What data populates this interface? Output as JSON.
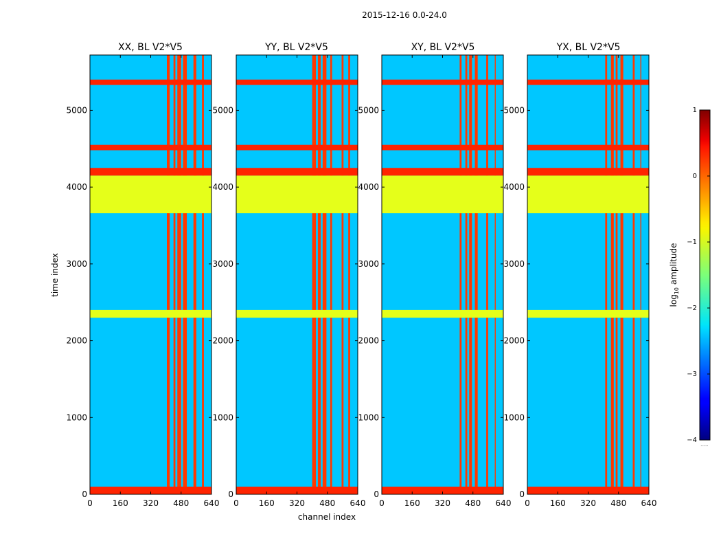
{
  "chart_data": {
    "type": "heatmap",
    "suptitle": "2015-12-16 0.0-24.0",
    "xlabel": "channel index",
    "ylabel": "time index",
    "xlim": [
      0,
      640
    ],
    "ylim": [
      0,
      5720
    ],
    "xticks": [
      "0",
      "160",
      "320",
      "480",
      "640"
    ],
    "xtick_values": [
      0,
      160,
      320,
      480,
      640
    ],
    "yticks": [
      "0",
      "1000",
      "2000",
      "3000",
      "4000",
      "5000"
    ],
    "ytick_values": [
      0,
      1000,
      2000,
      3000,
      4000,
      5000
    ],
    "colormap": "jet",
    "colorbar": {
      "label_prefix": "log",
      "label_sub": "10",
      "label_suffix": " amplitude",
      "range": [
        -4,
        1
      ],
      "ticks": [
        "−4",
        "−3",
        "−2",
        "−1",
        "0",
        "1"
      ],
      "tick_values": [
        -4,
        -3,
        -2,
        -1,
        0,
        1
      ],
      "footnote": "......"
    },
    "panels": [
      {
        "title": "XX, BL V2*V5",
        "rfi_channels": [
          [
            405,
            420
          ],
          [
            440,
            450
          ],
          [
            460,
            480
          ],
          [
            490,
            510
          ],
          [
            545,
            560
          ],
          [
            590,
            600
          ]
        ]
      },
      {
        "title": "YY, BL V2*V5",
        "rfi_channels": [
          [
            400,
            420
          ],
          [
            430,
            445
          ],
          [
            455,
            475
          ],
          [
            495,
            505
          ],
          [
            555,
            565
          ],
          [
            590,
            600
          ]
        ]
      },
      {
        "title": "XY, BL V2*V5",
        "rfi_channels": [
          [
            410,
            420
          ],
          [
            440,
            450
          ],
          [
            460,
            475
          ],
          [
            490,
            505
          ],
          [
            550,
            560
          ],
          [
            595,
            600
          ]
        ]
      },
      {
        "title": "YX, BL V2*V5",
        "rfi_channels": [
          [
            410,
            420
          ],
          [
            440,
            455
          ],
          [
            465,
            475
          ],
          [
            490,
            505
          ],
          [
            555,
            565
          ],
          [
            595,
            600
          ]
        ]
      }
    ],
    "flagged_time_ranges": [
      {
        "range": [
          0,
          100
        ],
        "value": 0.2
      },
      {
        "range": [
          2300,
          2400
        ],
        "value": -1.0
      },
      {
        "range": [
          3660,
          4150
        ],
        "value": -1.0
      },
      {
        "range": [
          4150,
          4250
        ],
        "value": 0.2
      },
      {
        "range": [
          4480,
          4550
        ],
        "value": 0.2
      },
      {
        "range": [
          5330,
          5400
        ],
        "value": 0.2
      }
    ],
    "background_value": -2.4
  }
}
